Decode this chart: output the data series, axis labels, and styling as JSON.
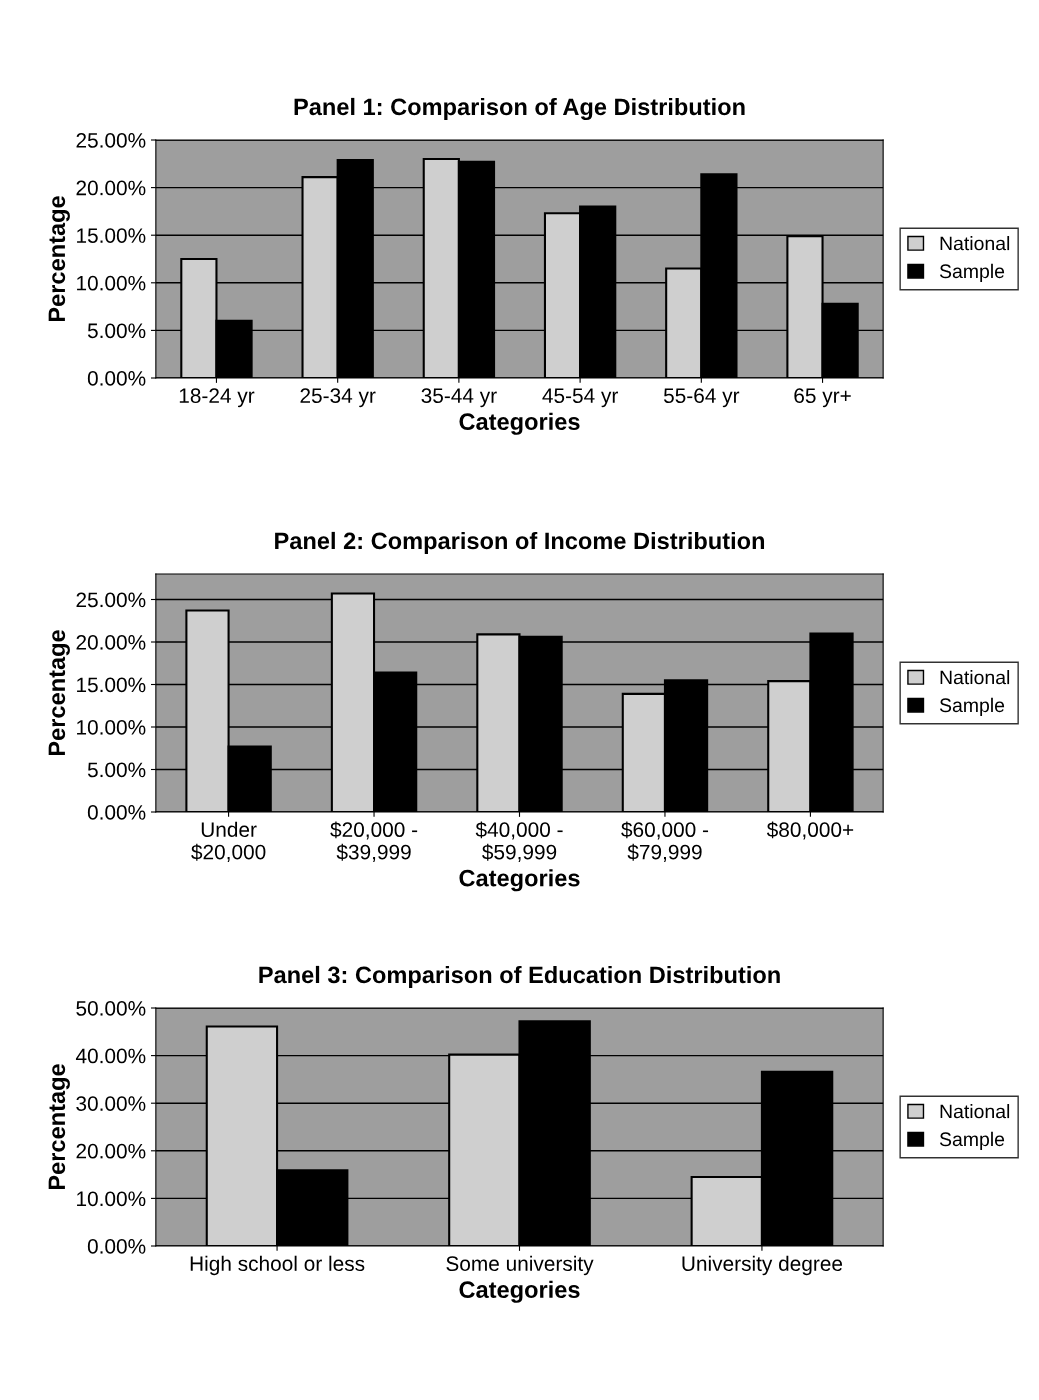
{
  "chart_data": [
    {
      "type": "bar",
      "title": "Panel 1: Comparison of Age Distribution",
      "xlabel": "Categories",
      "ylabel": "Percentage",
      "categories": [
        "18-24 yr",
        "25-34 yr",
        "35-44 yr",
        "45-54 yr",
        "55-64 yr",
        "65 yr+"
      ],
      "series": [
        {
          "name": "National",
          "color": "#cfcfcf",
          "values": [
            12.5,
            21.1,
            23.0,
            17.3,
            11.5,
            14.9
          ]
        },
        {
          "name": "Sample",
          "color": "#000000",
          "values": [
            6.0,
            22.9,
            22.7,
            18.0,
            21.4,
            7.8
          ]
        }
      ],
      "ylim": [
        0,
        25
      ],
      "yticks": [
        {
          "value": 0,
          "label": "0.00%"
        },
        {
          "value": 5,
          "label": "5.00%"
        },
        {
          "value": 10,
          "label": "10.00%"
        },
        {
          "value": 15,
          "label": "15.00%"
        },
        {
          "value": 20,
          "label": "20.00%"
        },
        {
          "value": 25,
          "label": "25.00%"
        }
      ],
      "grid": "y",
      "legend": "right"
    },
    {
      "type": "bar",
      "title": "Panel 2: Comparison of Income Distribution",
      "xlabel": "Categories",
      "ylabel": "Percentage",
      "categories": [
        "Under\n$20,000",
        "$20,000 -\n$39,999",
        "$40,000 -\n$59,999",
        "$60,000 -\n$79,999",
        "$80,000+"
      ],
      "series": [
        {
          "name": "National",
          "color": "#cfcfcf",
          "values": [
            23.7,
            25.7,
            20.9,
            13.9,
            15.4
          ]
        },
        {
          "name": "Sample",
          "color": "#000000",
          "values": [
            7.7,
            16.4,
            20.6,
            15.5,
            21.0
          ]
        }
      ],
      "ylim": [
        0,
        28
      ],
      "yticks": [
        {
          "value": 0,
          "label": "0.00%"
        },
        {
          "value": 5,
          "label": "5.00%"
        },
        {
          "value": 10,
          "label": "10.00%"
        },
        {
          "value": 15,
          "label": "15.00%"
        },
        {
          "value": 20,
          "label": "20.00%"
        },
        {
          "value": 25,
          "label": "25.00%"
        }
      ],
      "grid": "y",
      "legend": "right"
    },
    {
      "type": "bar",
      "title": "Panel 3: Comparison of Education Distribution",
      "xlabel": "Categories",
      "ylabel": "Percentage",
      "categories": [
        "High school or less",
        "Some university",
        "University degree"
      ],
      "series": [
        {
          "name": "National",
          "color": "#cfcfcf",
          "values": [
            46.1,
            40.2,
            14.5
          ]
        },
        {
          "name": "Sample",
          "color": "#000000",
          "values": [
            15.9,
            47.2,
            36.6
          ]
        }
      ],
      "ylim": [
        0,
        50
      ],
      "yticks": [
        {
          "value": 0,
          "label": "0.00%"
        },
        {
          "value": 10,
          "label": "10.00%"
        },
        {
          "value": 20,
          "label": "20.00%"
        },
        {
          "value": 30,
          "label": "30.00%"
        },
        {
          "value": 40,
          "label": "40.00%"
        },
        {
          "value": 50,
          "label": "50.00%"
        }
      ],
      "grid": "y",
      "legend": "right"
    }
  ]
}
